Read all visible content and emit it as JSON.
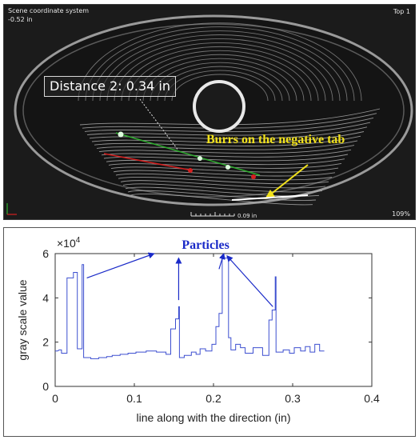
{
  "viewer": {
    "coord_system_label": "Scene coordinate system",
    "coord_value": "-0.52 in",
    "view_name": "Top 1",
    "zoom_level": "109%",
    "scale_bar_label": "0.09 in",
    "measurement_label": "Distance 2: 0.34 in",
    "annotation_label": "Burrs on the negative tab",
    "colors": {
      "background": "#1b1b1b",
      "annotation": "#f2e21b",
      "measure_line": "#2fae2f",
      "marker_red": "#d42020"
    }
  },
  "chart_data": {
    "type": "line",
    "title": "",
    "xlabel": "line along with the direction (in)",
    "ylabel": "gray scale value",
    "y_exponent_label": "×10",
    "y_exponent_power": "4",
    "xlim": [
      0,
      0.4
    ],
    "ylim": [
      0,
      6
    ],
    "x_ticks": [
      "0",
      "0.1",
      "0.2",
      "0.3",
      "0.4"
    ],
    "y_ticks": [
      "0",
      "2",
      "4",
      "6"
    ],
    "grid": false,
    "annotation": "Particles",
    "series": [
      {
        "color": "#3d4fd0",
        "points": [
          [
            0.0,
            1.6
          ],
          [
            0.003,
            1.6
          ],
          [
            0.005,
            1.65
          ],
          [
            0.008,
            1.65
          ],
          [
            0.008,
            1.5
          ],
          [
            0.015,
            1.5
          ],
          [
            0.015,
            4.9
          ],
          [
            0.023,
            4.9
          ],
          [
            0.023,
            5.15
          ],
          [
            0.028,
            5.15
          ],
          [
            0.028,
            1.7
          ],
          [
            0.034,
            1.7
          ],
          [
            0.034,
            5.5
          ],
          [
            0.036,
            5.5
          ],
          [
            0.036,
            1.3
          ],
          [
            0.045,
            1.3
          ],
          [
            0.045,
            1.25
          ],
          [
            0.055,
            1.25
          ],
          [
            0.055,
            1.3
          ],
          [
            0.065,
            1.3
          ],
          [
            0.065,
            1.35
          ],
          [
            0.072,
            1.35
          ],
          [
            0.072,
            1.4
          ],
          [
            0.082,
            1.4
          ],
          [
            0.082,
            1.45
          ],
          [
            0.092,
            1.45
          ],
          [
            0.092,
            1.5
          ],
          [
            0.102,
            1.5
          ],
          [
            0.102,
            1.55
          ],
          [
            0.115,
            1.55
          ],
          [
            0.115,
            1.6
          ],
          [
            0.128,
            1.6
          ],
          [
            0.128,
            1.55
          ],
          [
            0.14,
            1.55
          ],
          [
            0.14,
            1.45
          ],
          [
            0.146,
            1.45
          ],
          [
            0.146,
            2.6
          ],
          [
            0.152,
            2.6
          ],
          [
            0.152,
            3.05
          ],
          [
            0.156,
            3.05
          ],
          [
            0.156,
            3.6
          ],
          [
            0.157,
            3.6
          ],
          [
            0.157,
            1.3
          ],
          [
            0.163,
            1.3
          ],
          [
            0.163,
            1.4
          ],
          [
            0.172,
            1.4
          ],
          [
            0.172,
            1.55
          ],
          [
            0.178,
            1.55
          ],
          [
            0.178,
            1.45
          ],
          [
            0.183,
            1.45
          ],
          [
            0.183,
            1.7
          ],
          [
            0.19,
            1.7
          ],
          [
            0.19,
            1.6
          ],
          [
            0.198,
            1.6
          ],
          [
            0.198,
            1.9
          ],
          [
            0.203,
            1.9
          ],
          [
            0.203,
            2.7
          ],
          [
            0.207,
            2.7
          ],
          [
            0.207,
            3.3
          ],
          [
            0.211,
            3.3
          ],
          [
            0.211,
            5.8
          ],
          [
            0.219,
            5.8
          ],
          [
            0.219,
            2.2
          ],
          [
            0.222,
            2.2
          ],
          [
            0.222,
            1.65
          ],
          [
            0.228,
            1.65
          ],
          [
            0.228,
            1.9
          ],
          [
            0.234,
            1.9
          ],
          [
            0.234,
            1.75
          ],
          [
            0.24,
            1.75
          ],
          [
            0.24,
            1.5
          ],
          [
            0.25,
            1.5
          ],
          [
            0.25,
            1.75
          ],
          [
            0.262,
            1.75
          ],
          [
            0.262,
            1.4
          ],
          [
            0.27,
            1.4
          ],
          [
            0.27,
            3.0
          ],
          [
            0.274,
            3.0
          ],
          [
            0.274,
            3.45
          ],
          [
            0.278,
            3.45
          ],
          [
            0.278,
            4.95
          ],
          [
            0.279,
            4.95
          ],
          [
            0.279,
            1.55
          ],
          [
            0.288,
            1.55
          ],
          [
            0.288,
            1.65
          ],
          [
            0.296,
            1.65
          ],
          [
            0.296,
            1.5
          ],
          [
            0.302,
            1.5
          ],
          [
            0.302,
            1.75
          ],
          [
            0.31,
            1.75
          ],
          [
            0.31,
            1.6
          ],
          [
            0.316,
            1.6
          ],
          [
            0.316,
            1.8
          ],
          [
            0.322,
            1.8
          ],
          [
            0.322,
            1.55
          ],
          [
            0.328,
            1.55
          ],
          [
            0.328,
            1.9
          ],
          [
            0.334,
            1.9
          ],
          [
            0.334,
            1.6
          ],
          [
            0.34,
            1.6
          ]
        ]
      }
    ],
    "particle_arrows": [
      {
        "from": [
          0.04,
          4.9
        ],
        "to": [
          0.125,
          6.0
        ]
      },
      {
        "from": [
          0.156,
          3.9
        ],
        "to": [
          0.156,
          5.8
        ]
      },
      {
        "from": [
          0.207,
          5.3
        ],
        "to": [
          0.213,
          6.0
        ]
      },
      {
        "from": [
          0.275,
          3.6
        ],
        "to": [
          0.217,
          5.9
        ]
      }
    ]
  }
}
